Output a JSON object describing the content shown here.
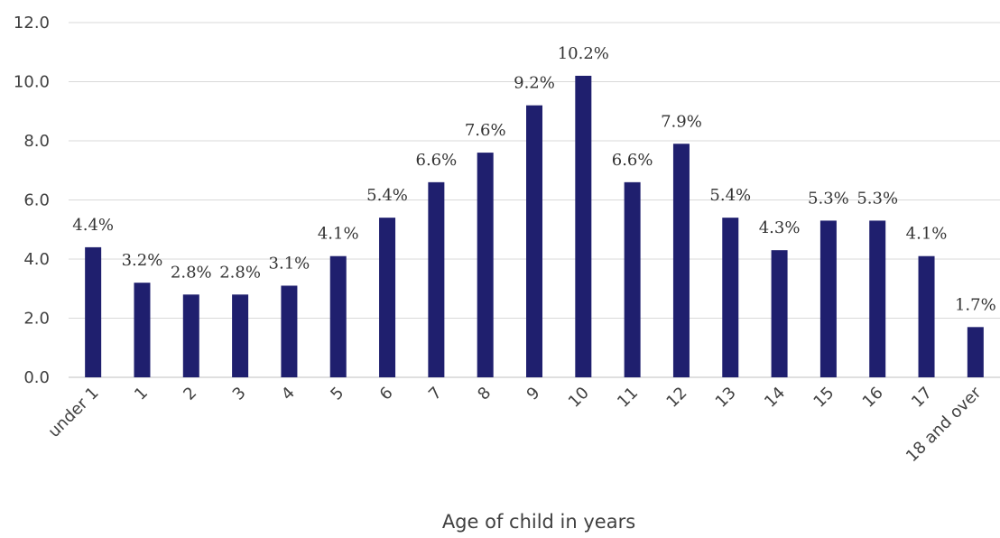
{
  "chart_data": {
    "type": "bar",
    "title": "",
    "xlabel": "Age of child in years",
    "ylabel": "",
    "ylim": [
      0,
      12
    ],
    "yticks": [
      0,
      2,
      4,
      6,
      8,
      10,
      12
    ],
    "ytick_labels": [
      "0.0",
      "2.0",
      "4.0",
      "6.0",
      "8.0",
      "10.0",
      "12.0"
    ],
    "grid": true,
    "legend": "none",
    "bar_color": "#1f1f6e",
    "categories": [
      "under 1",
      "1",
      "2",
      "3",
      "4",
      "5",
      "6",
      "7",
      "8",
      "9",
      "10",
      "11",
      "12",
      "13",
      "14",
      "15",
      "16",
      "17",
      "18 and over"
    ],
    "values": [
      4.4,
      3.2,
      2.8,
      2.8,
      3.1,
      4.1,
      5.4,
      6.6,
      7.6,
      9.2,
      10.2,
      6.6,
      7.9,
      5.4,
      4.3,
      5.3,
      5.3,
      4.1,
      1.7
    ],
    "value_labels": [
      "4.4%",
      "3.2%",
      "2.8%",
      "2.8%",
      "3.1%",
      "4.1%",
      "5.4%",
      "6.6%",
      "7.6%",
      "9.2%",
      "10.2%",
      "6.6%",
      "7.9%",
      "5.4%",
      "4.3%",
      "5.3%",
      "5.3%",
      "4.1%",
      "1.7%"
    ]
  }
}
